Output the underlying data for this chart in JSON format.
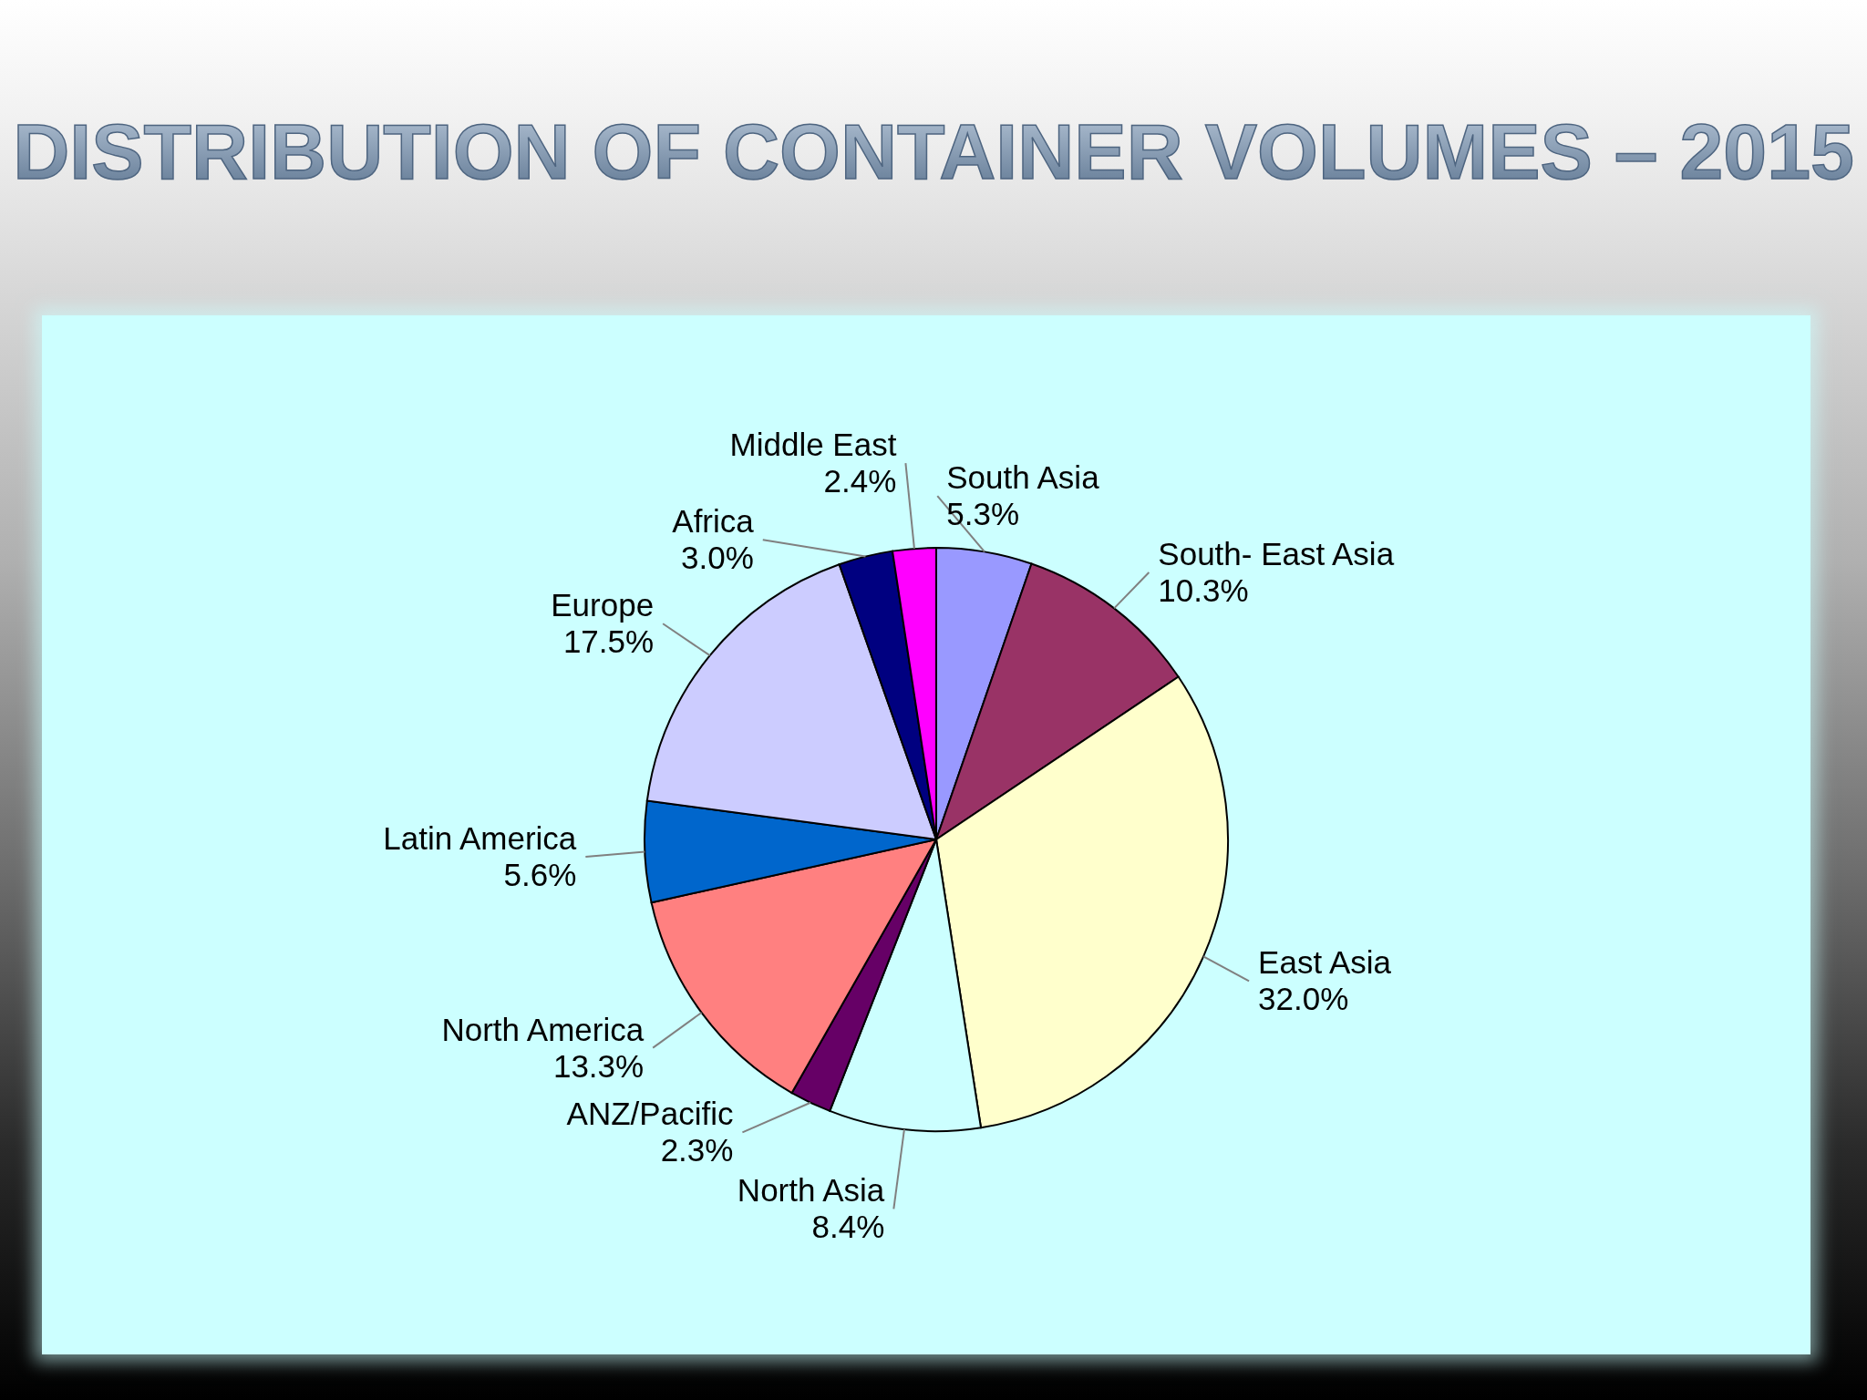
{
  "chart_data": {
    "type": "pie",
    "title": "DISTRIBUTION OF CONTAINER VOLUMES – 2015",
    "categories": [
      "South Asia",
      "South- East Asia",
      "East Asia",
      "North Asia",
      "ANZ/Pacific",
      "North America",
      "Latin America",
      "Europe",
      "Africa",
      "Middle East"
    ],
    "values": [
      5.3,
      10.3,
      32.0,
      8.4,
      2.3,
      13.3,
      5.6,
      17.5,
      3.0,
      2.4
    ],
    "colors": [
      "#9999ff",
      "#993366",
      "#ffffcc",
      "#ccffff",
      "#660066",
      "#ff8080",
      "#0066cc",
      "#ccccff",
      "#000080",
      "#ff00ff"
    ],
    "value_labels": [
      "5.3%",
      "10.3%",
      "32.0%",
      "8.4%",
      "2.3%",
      "13.3%",
      "5.6%",
      "17.5%",
      "3.0%",
      "2.4%"
    ]
  }
}
